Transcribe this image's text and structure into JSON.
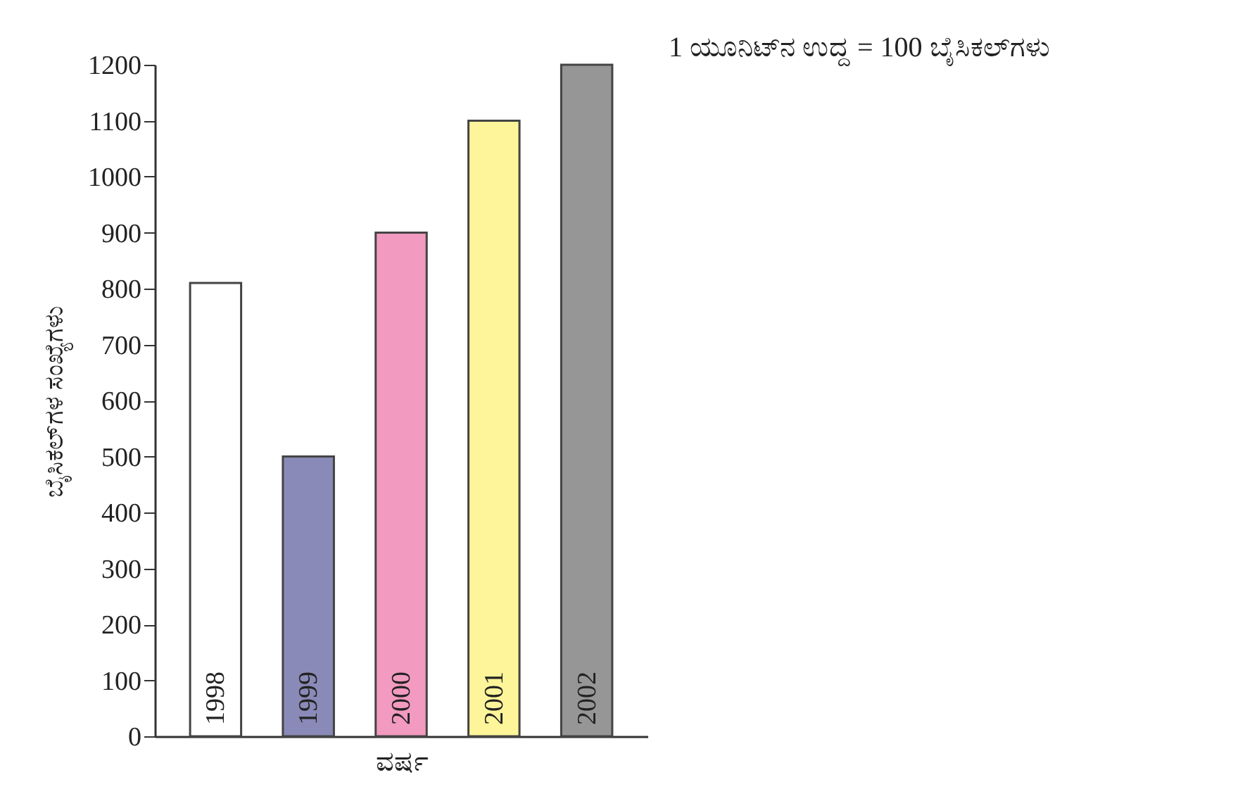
{
  "chart_data": {
    "type": "bar",
    "categories": [
      "1998",
      "1999",
      "2000",
      "2001",
      "2002"
    ],
    "values": [
      810,
      500,
      900,
      1100,
      1200
    ],
    "colors": [
      "#ffffff",
      "#8a8ab8",
      "#f29ac0",
      "#fef59a",
      "#969696"
    ],
    "xlabel": "ವರ್ಷ",
    "ylabel": "ಬೈಸಿಕಲ್‌ಗಳ ಸಂಖ್ಯೆಗಳು",
    "annotations": [
      "1 ಯೂನಿಟ್‌ನ ಉದ್ದ = 100 ಬೈಸಿಕಲ್‌ಗಳು"
    ],
    "ylim": [
      0,
      1200
    ],
    "yticks": [
      0,
      100,
      200,
      300,
      400,
      500,
      600,
      700,
      800,
      900,
      1000,
      1100,
      1200
    ],
    "grid": false,
    "legend": false,
    "tick_labels": "y"
  }
}
